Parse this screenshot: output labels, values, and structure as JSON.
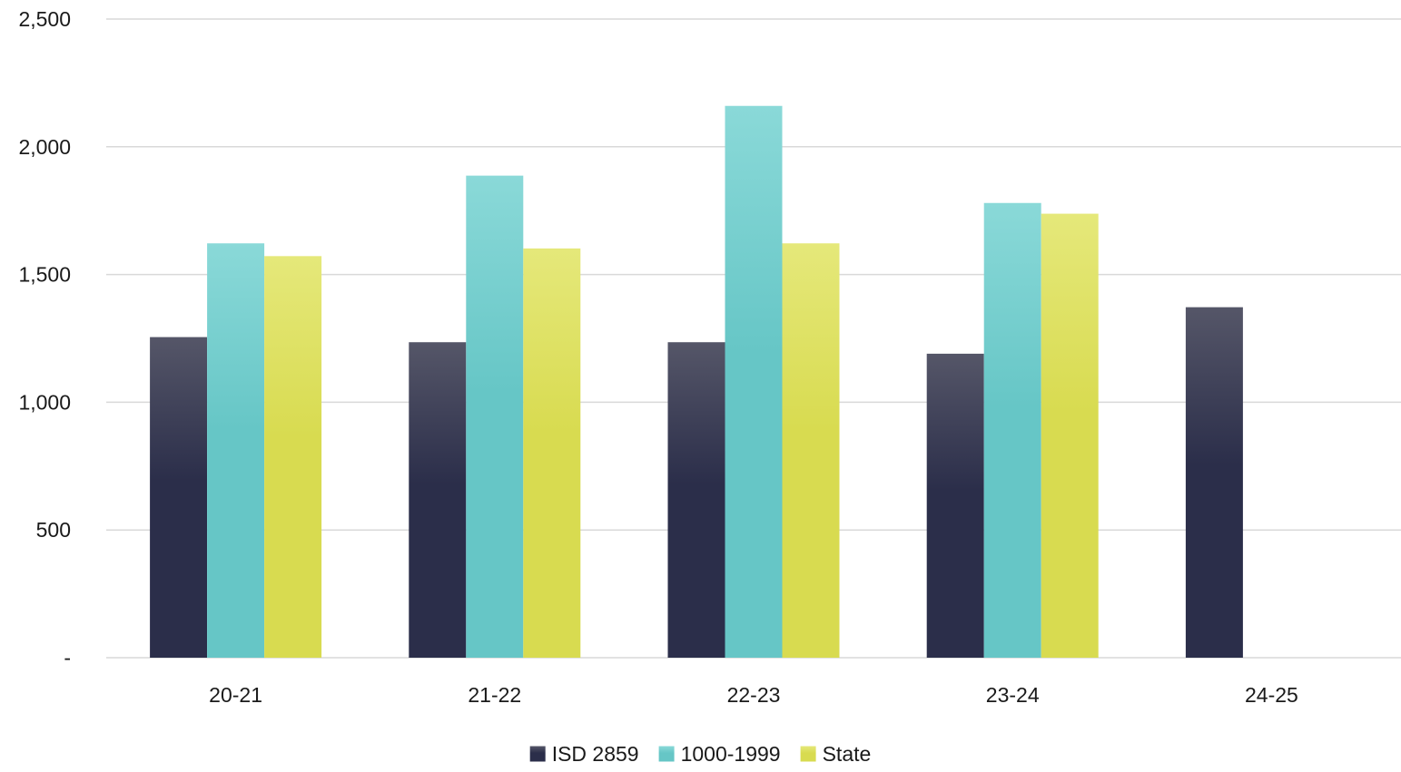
{
  "chart_data": {
    "type": "bar",
    "categories": [
      "20-21",
      "21-22",
      "22-23",
      "23-24",
      "24-25"
    ],
    "series": [
      {
        "name": "ISD 2859",
        "values": [
          1255,
          1235,
          1235,
          1190,
          1372
        ],
        "color": "#2b2e4a",
        "color_top": "#555668"
      },
      {
        "name": "1000-1999",
        "values": [
          1622,
          1887,
          2160,
          1780,
          null
        ],
        "color": "#66c6c6",
        "color_top": "#8ad9d8"
      },
      {
        "name": "State",
        "values": [
          1572,
          1602,
          1622,
          1738,
          null
        ],
        "color": "#d8db50",
        "color_top": "#e5e87a"
      }
    ],
    "ylim": [
      0,
      2500
    ],
    "yticks": [
      0,
      500,
      1000,
      1500,
      2000,
      2500
    ],
    "ytick_labels": [
      "-",
      "500",
      "1,000",
      "1,500",
      "2,000",
      "2,500"
    ],
    "grid": true,
    "legend_position": "bottom-center",
    "title": "",
    "xlabel": "",
    "ylabel": "",
    "gridline_color": "#d9d9d9"
  }
}
